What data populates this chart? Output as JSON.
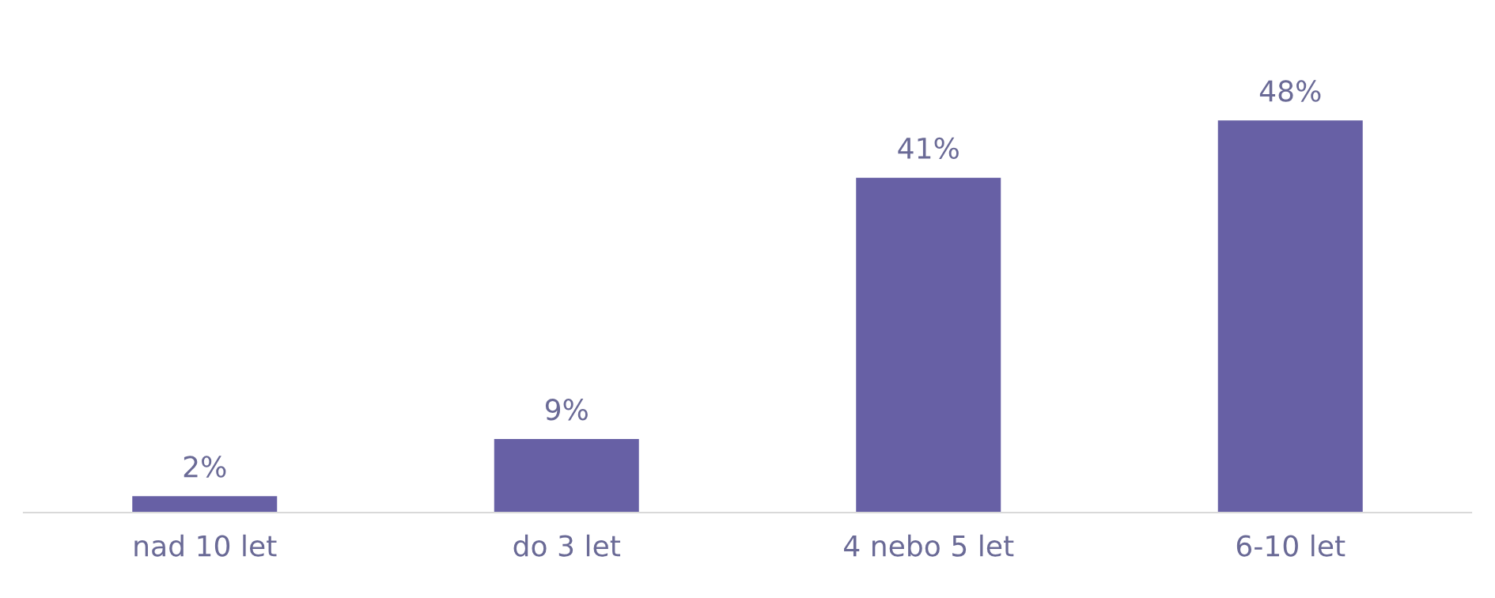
{
  "chart_data": {
    "type": "bar",
    "categories": [
      "nad 10 let",
      "do 3 let",
      "4 nebo 5 let",
      "6-10 let"
    ],
    "values": [
      2,
      9,
      41,
      48
    ],
    "value_labels": [
      "2%",
      "9%",
      "41%",
      "48%"
    ],
    "color": "#6760a5",
    "grid": false,
    "legend": false,
    "tick_labels": "x"
  }
}
